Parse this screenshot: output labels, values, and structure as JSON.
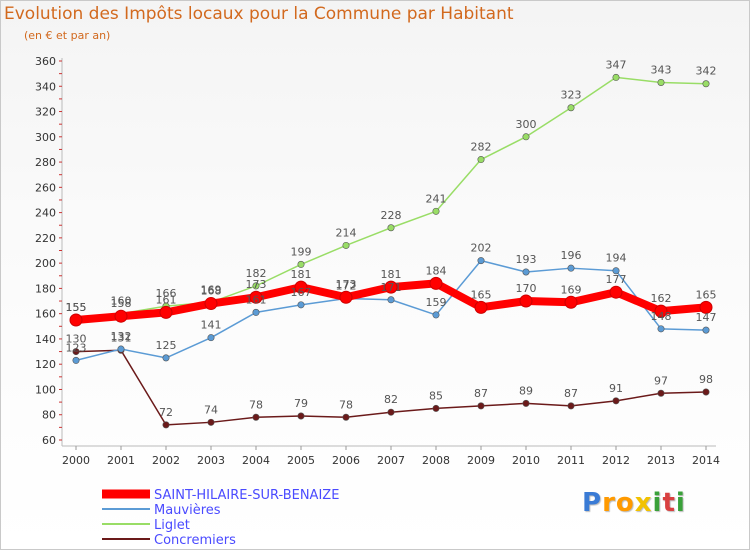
{
  "chart_data": {
    "type": "line",
    "title": "Evolution des Impôts locaux pour la Commune par Habitant",
    "subtitle": "(en € et par an)",
    "x": [
      "2000",
      "2001",
      "2002",
      "2003",
      "2004",
      "2005",
      "2006",
      "2007",
      "2008",
      "2009",
      "2010",
      "2011",
      "2012",
      "2013",
      "2014"
    ],
    "yticks": [
      60,
      80,
      100,
      120,
      140,
      160,
      180,
      200,
      220,
      240,
      260,
      280,
      300,
      320,
      340,
      360
    ],
    "ylim": [
      60,
      360
    ],
    "grid": false,
    "legend_position": "bottom-left",
    "series": [
      {
        "name": "Concremiers",
        "color": "#6b1a1a",
        "values": [
          130,
          131,
          72,
          74,
          78,
          79,
          78,
          82,
          85,
          87,
          89,
          87,
          91,
          97,
          98
        ],
        "labels": [
          "130",
          "131",
          "72",
          "74",
          "78",
          "79",
          "78",
          "82",
          "85",
          "87",
          "89",
          "87",
          "91",
          "97",
          "98"
        ]
      },
      {
        "name": "Liglet",
        "color": "#99dd66",
        "values": [
          155,
          160,
          166,
          169,
          182,
          199,
          214,
          228,
          241,
          282,
          300,
          323,
          347,
          343,
          342
        ],
        "labels": [
          "155",
          "160",
          "166",
          "169",
          "182",
          "199",
          "214",
          "228",
          "241",
          "282",
          "300",
          "323",
          "347",
          "343",
          "342"
        ]
      },
      {
        "name": "Mauvières",
        "color": "#5b9bd5",
        "values": [
          123,
          132,
          125,
          141,
          161,
          167,
          172,
          171,
          159,
          202,
          193,
          196,
          194,
          148,
          147
        ],
        "labels": [
          "123",
          "132",
          "125",
          "141",
          "161",
          "167",
          "172",
          "171",
          "159",
          "202",
          "193",
          "196",
          "194",
          "148",
          "147"
        ]
      },
      {
        "name": "SAINT-HILAIRE-SUR-BENAIZE",
        "color": "#ff0000",
        "values": [
          155,
          158,
          161,
          168,
          173,
          181,
          173,
          181,
          184,
          165,
          170,
          169,
          177,
          162,
          165
        ],
        "labels": [
          "155",
          "158",
          "161",
          "168",
          "173",
          "181",
          "173",
          "181",
          "184",
          "165",
          "170",
          "169",
          "177",
          "162",
          "165"
        ]
      }
    ],
    "legend_order": [
      "SAINT-HILAIRE-SUR-BENAIZE",
      "Mauvières",
      "Liglet",
      "Concremiers"
    ]
  },
  "logo": {
    "letters": [
      "P",
      "r",
      "o",
      "x",
      "i",
      "t",
      "i"
    ],
    "colors": [
      "#3a7bd5",
      "#ff9a00",
      "#ff9a00",
      "#f2c200",
      "#3aa13a",
      "#d94040",
      "#3aa13a"
    ]
  }
}
